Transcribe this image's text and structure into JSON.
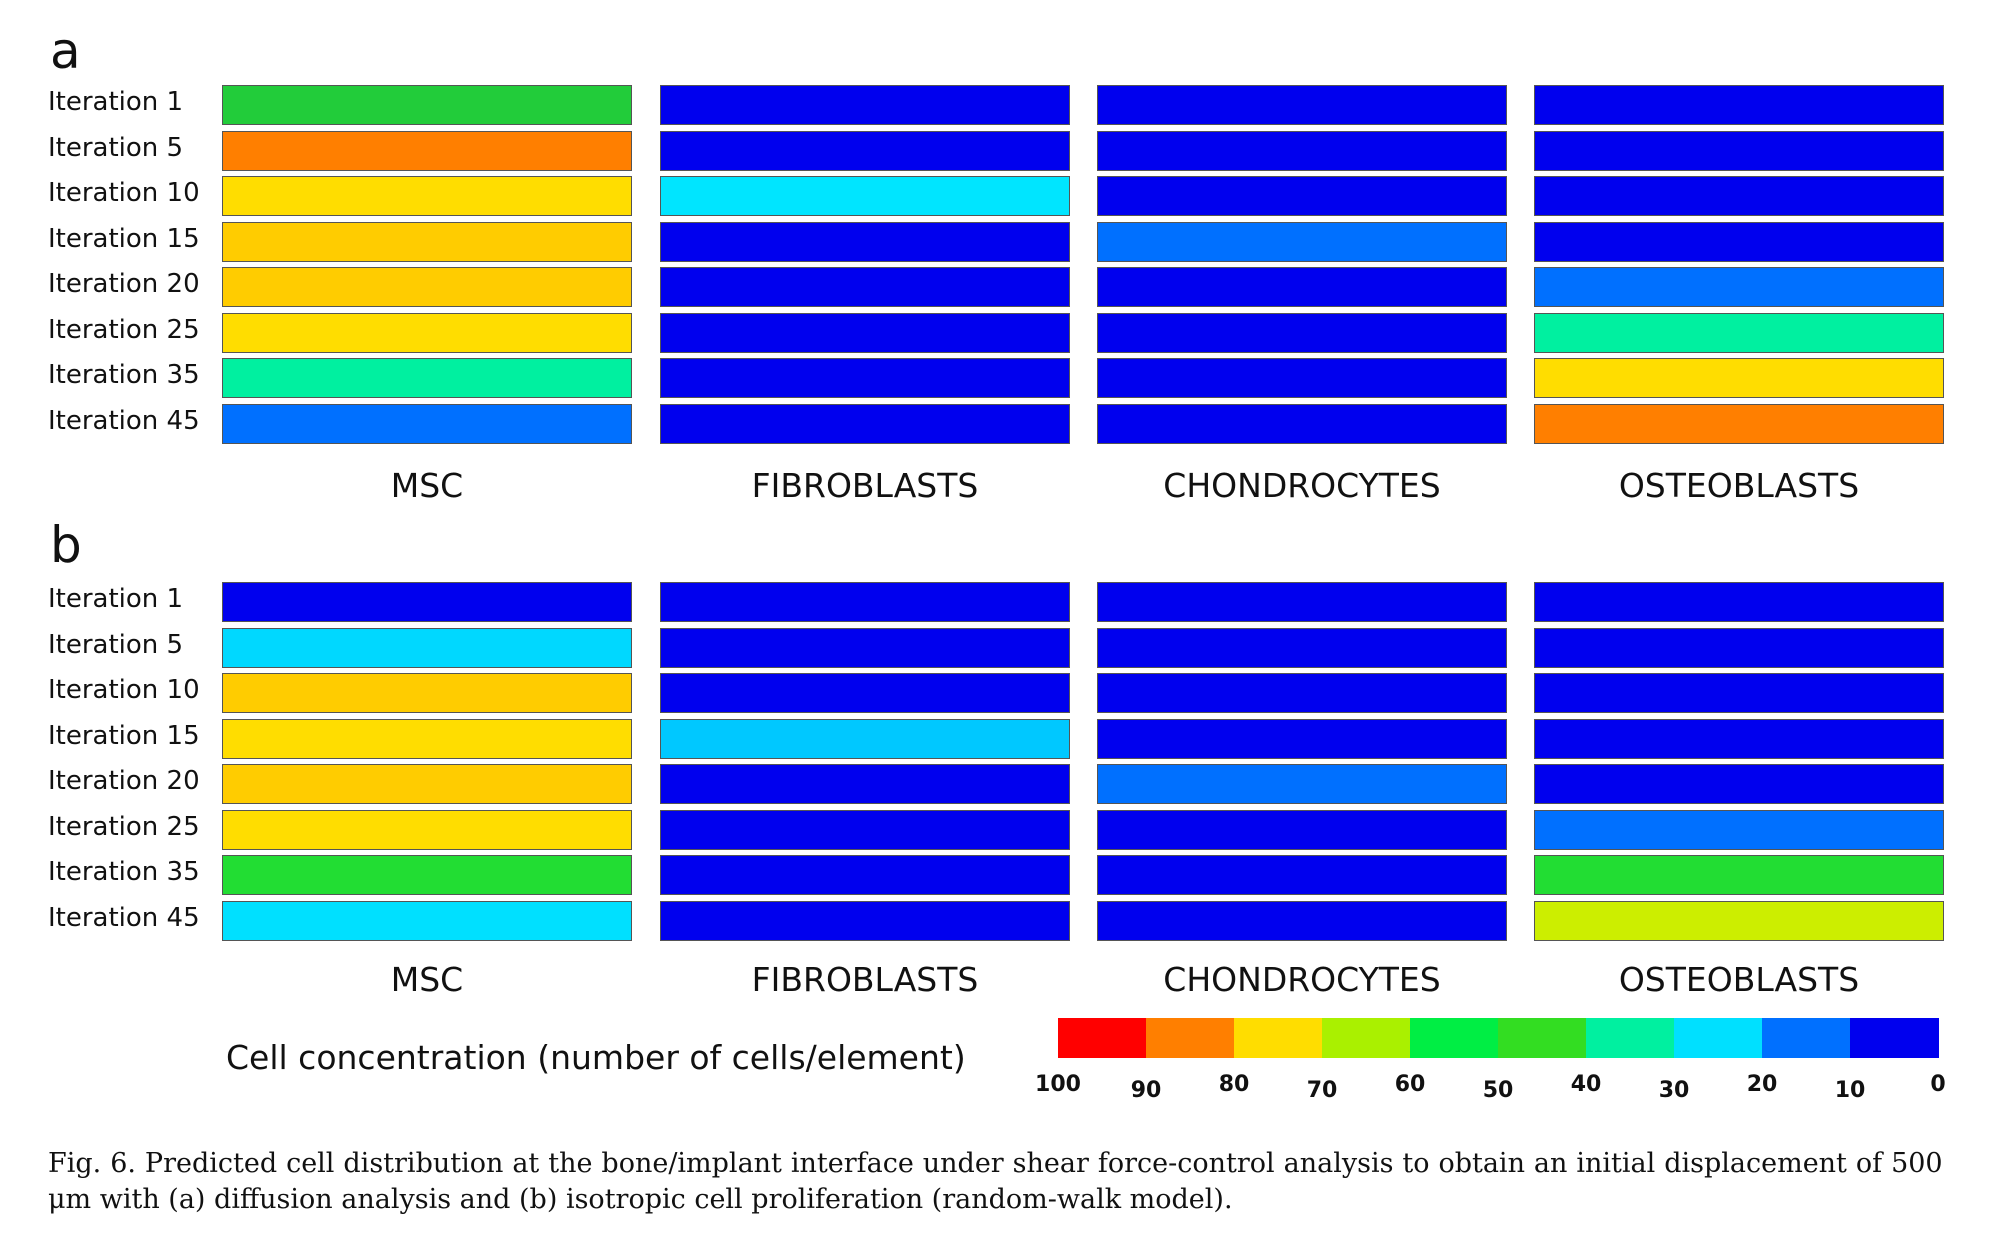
{
  "panels": [
    {
      "letter": "a",
      "rows": [
        "Iteration 1",
        "Iteration 5",
        "Iteration 10",
        "Iteration 15",
        "Iteration 20",
        "Iteration 25",
        "Iteration 35",
        "Iteration 45"
      ],
      "columns": [
        "MSC",
        "FIBROBLASTS",
        "CHONDROCYTES",
        "OSTEOBLASTS"
      ],
      "cells": [
        [
          "#22cc3a",
          "#0000ee",
          "#0000ee",
          "#0000ee"
        ],
        [
          "#ff7f00",
          "#0000ee",
          "#0000ee",
          "#0000ee"
        ],
        [
          "#ffdd00",
          "#00e5ff",
          "#0000ee",
          "#0000ee"
        ],
        [
          "#ffcc00",
          "#0000ee",
          "#0070ff",
          "#0000ee"
        ],
        [
          "#ffcc00",
          "#0000ee",
          "#0000ee",
          "#0070ff"
        ],
        [
          "#ffdd00",
          "#0000ee",
          "#0000ee",
          "#00f0a0"
        ],
        [
          "#00f0a0",
          "#0000ee",
          "#0000ee",
          "#ffdd00"
        ],
        [
          "#0070ff",
          "#0000ee",
          "#0000ee",
          "#ff7f00"
        ]
      ]
    },
    {
      "letter": "b",
      "rows": [
        "Iteration 1",
        "Iteration 5",
        "Iteration 10",
        "Iteration 15",
        "Iteration 20",
        "Iteration 25",
        "Iteration 35",
        "Iteration 45"
      ],
      "columns": [
        "MSC",
        "FIBROBLASTS",
        "CHONDROCYTES",
        "OSTEOBLASTS"
      ],
      "cells": [
        [
          "#0000ee",
          "#0000ee",
          "#0000ee",
          "#0000ee"
        ],
        [
          "#00d8ff",
          "#0000ee",
          "#0000ee",
          "#0000ee"
        ],
        [
          "#ffcc00",
          "#0000ee",
          "#0000ee",
          "#0000ee"
        ],
        [
          "#ffdd00",
          "#00c8ff",
          "#0000ee",
          "#0000ee"
        ],
        [
          "#ffcc00",
          "#0000ee",
          "#0070ff",
          "#0000ee"
        ],
        [
          "#ffdd00",
          "#0000ee",
          "#0000ee",
          "#0070ff"
        ],
        [
          "#22dd33",
          "#0000ee",
          "#0000ee",
          "#22dd33"
        ],
        [
          "#00e0ff",
          "#0000ee",
          "#0000ee",
          "#ccee00"
        ]
      ]
    }
  ],
  "legend": {
    "title": "Cell concentration  (number of cells/element)",
    "colors": [
      "#ff0000",
      "#ff7f00",
      "#ffdd00",
      "#aaf000",
      "#00ee44",
      "#33dd22",
      "#00f0a0",
      "#00e0ff",
      "#0070ff",
      "#0000ee"
    ],
    "ticks": [
      "100",
      "90",
      "80",
      "70",
      "60",
      "50",
      "40",
      "30",
      "20",
      "10",
      "0"
    ]
  },
  "caption": "Fig. 6. Predicted cell distribution at the bone/implant interface under shear force-control analysis to obtain an initial displacement of 500 μm with (a) diffusion analysis and (b) isotropic cell proliferation (random-walk model)."
}
